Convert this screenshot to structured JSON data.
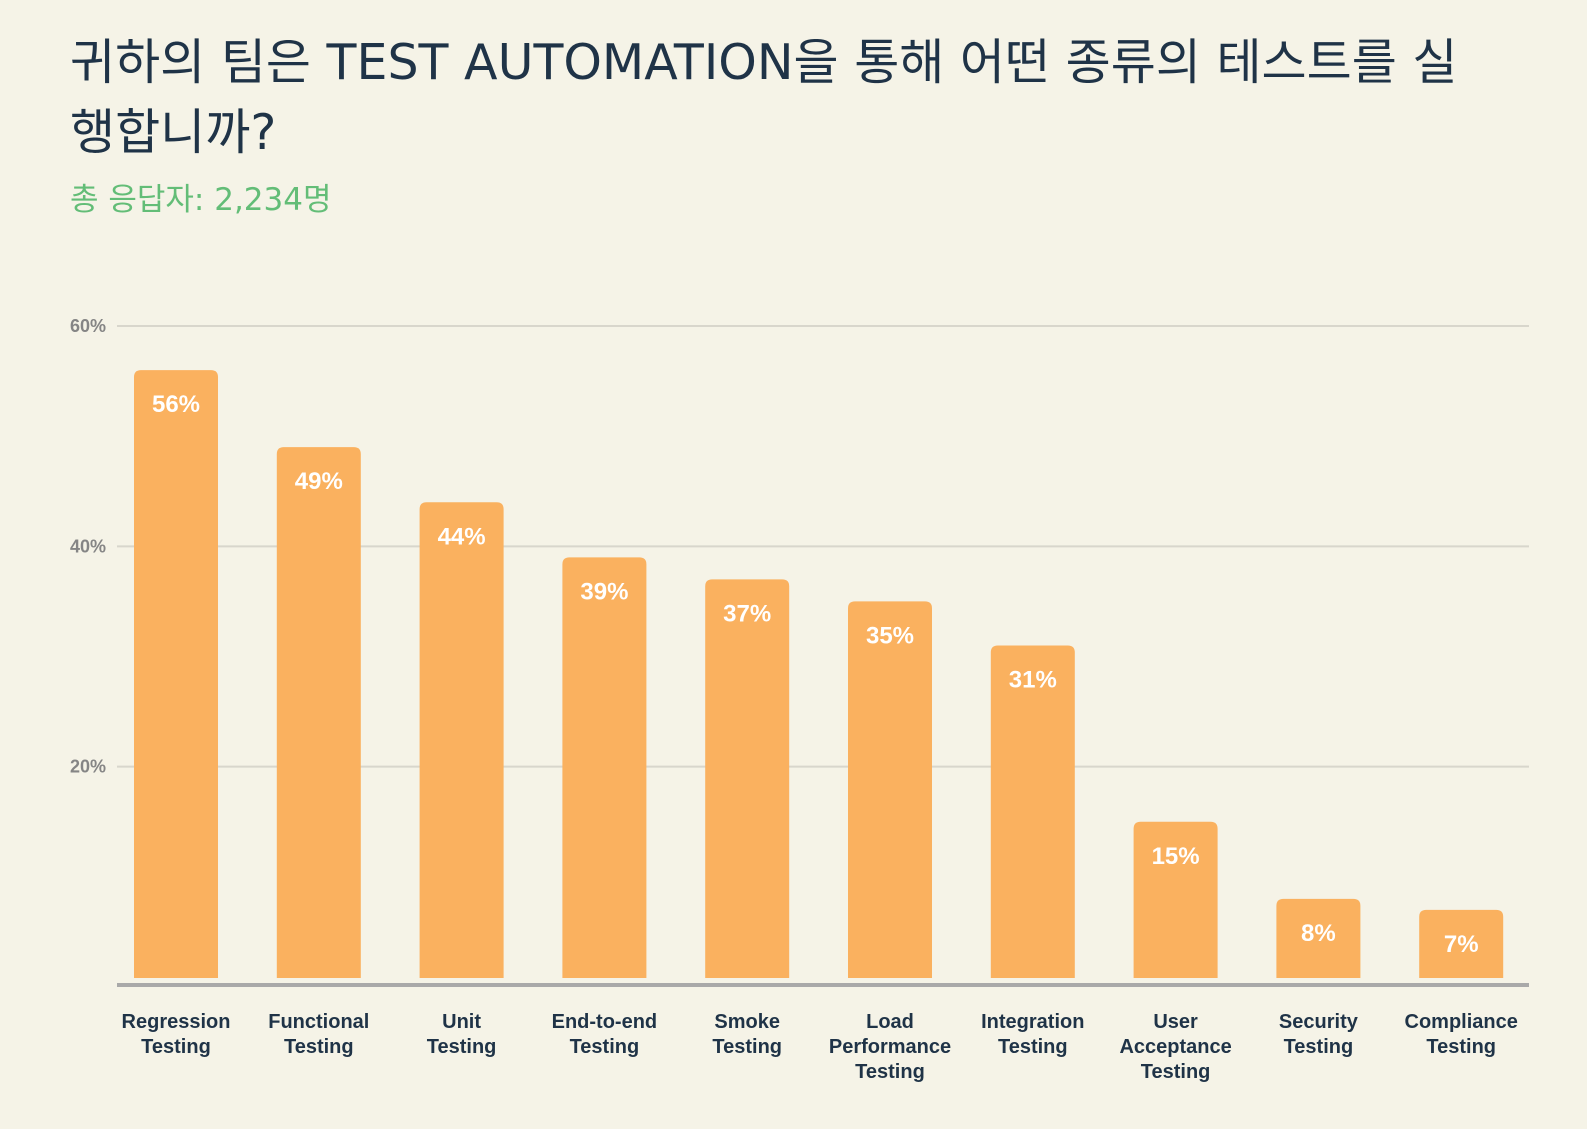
{
  "title": "귀하의 팀은 TEST AUTOMATION을 통해 어떤 종류의 테스트를 실행합니까?",
  "subtitle": "총 응답자: 2,234명",
  "colors": {
    "background": "#f5f3e7",
    "bar": "#fab15f",
    "title": "#1f3347",
    "subtitle": "#63bd77",
    "gridline": "#d8d6cc",
    "axis": "#a9a9a9"
  },
  "chart_data": {
    "type": "bar",
    "categories": [
      [
        "Regression",
        "Testing"
      ],
      [
        "Functional",
        "Testing"
      ],
      [
        "Unit",
        "Testing"
      ],
      [
        "End-to-end",
        "Testing"
      ],
      [
        "Smoke",
        "Testing"
      ],
      [
        "Load",
        "Performance",
        "Testing"
      ],
      [
        "Integration",
        "Testing"
      ],
      [
        "User",
        "Acceptance",
        "Testing"
      ],
      [
        "Security",
        "Testing"
      ],
      [
        "Compliance",
        "Testing"
      ]
    ],
    "values": [
      56,
      49,
      44,
      39,
      37,
      35,
      31,
      15,
      8,
      7
    ],
    "data_labels": [
      "56%",
      "49%",
      "44%",
      "39%",
      "37%",
      "35%",
      "31%",
      "15%",
      "8%",
      "7%"
    ],
    "yticks": [
      20,
      40,
      60
    ],
    "ytick_labels": [
      "20%",
      "40%",
      "60%"
    ],
    "ylim": [
      0,
      60
    ],
    "grid": true,
    "legend": "none"
  }
}
